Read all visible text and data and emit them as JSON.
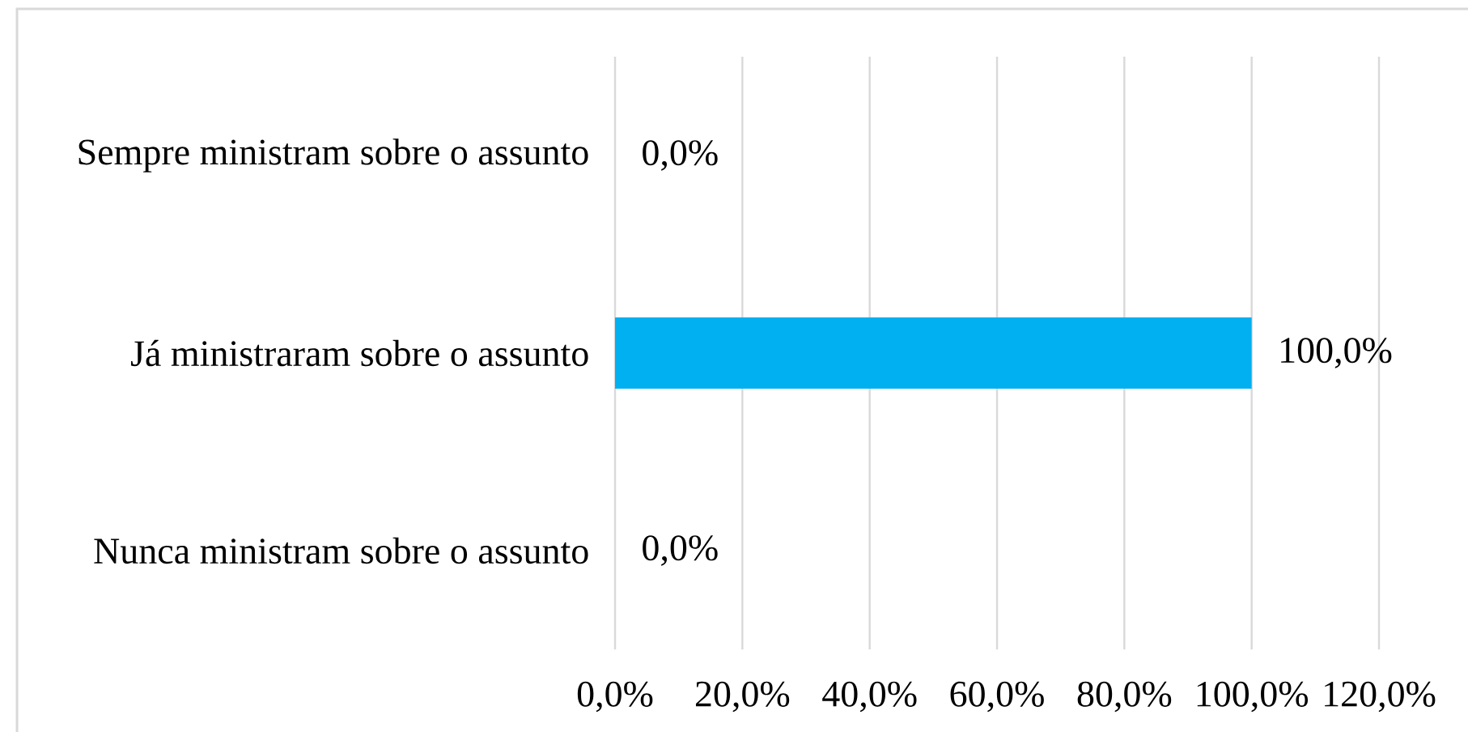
{
  "chart_data": {
    "type": "bar",
    "orientation": "horizontal",
    "categories": [
      "Sempre ministram sobre o assunto",
      "Já ministraram sobre o assunto",
      "Nunca ministram sobre o assunto"
    ],
    "values": [
      0,
      100,
      0
    ],
    "color": "#00b0f0",
    "value_labels": [
      "0,0%",
      "100,0%",
      "0,0%"
    ],
    "xlim": [
      0,
      120
    ],
    "xticks": [
      {
        "value": 0,
        "label": "0,0%"
      },
      {
        "value": 20,
        "label": "20,0%"
      },
      {
        "value": 40,
        "label": "40,0%"
      },
      {
        "value": 60,
        "label": "60,0%"
      },
      {
        "value": 80,
        "label": "80,0%"
      },
      {
        "value": 100,
        "label": "100,0%"
      },
      {
        "value": 120,
        "label": "120,0%"
      }
    ],
    "grid": "x"
  }
}
